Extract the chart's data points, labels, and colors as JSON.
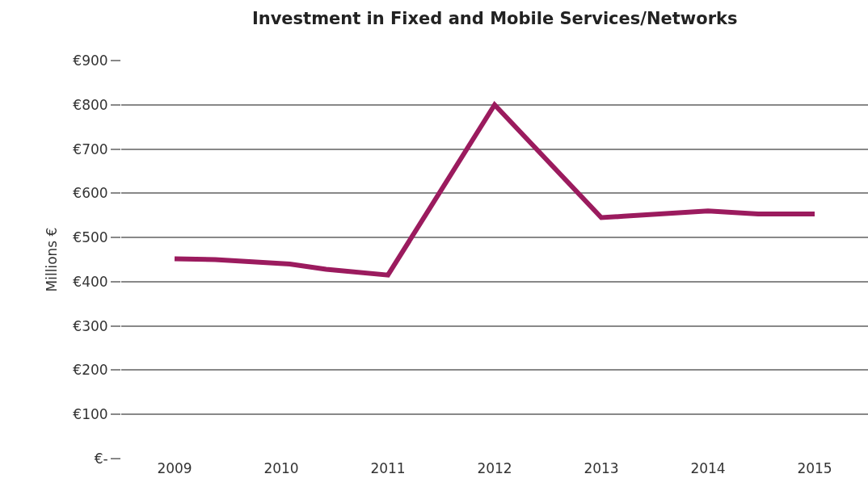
{
  "chart_data": {
    "type": "line",
    "title": "Investment in Fixed and Mobile Services/Networks",
    "ylabel": "Millions €",
    "x": [
      2009,
      2009.38,
      2010.08,
      2010.42,
      2011,
      2012,
      2013,
      2013.21,
      2014,
      2014.47,
      2015
    ],
    "series": [
      {
        "color": "#9b1b5e",
        "values": [
          452,
          450,
          440,
          428,
          415,
          800,
          545,
          548,
          560,
          553,
          553
        ]
      }
    ],
    "xlim": [
      2008.5,
      2015.5
    ],
    "xticks": [
      2009,
      2010,
      2011,
      2012,
      2013,
      2014,
      2015
    ],
    "ylim": [
      0,
      900
    ],
    "yticks": [
      {
        "value": 0,
        "label": "€-"
      },
      {
        "value": 100,
        "label": "€100"
      },
      {
        "value": 200,
        "label": "€200"
      },
      {
        "value": 300,
        "label": "€300"
      },
      {
        "value": 400,
        "label": "€400"
      },
      {
        "value": 500,
        "label": "€500"
      },
      {
        "value": 600,
        "label": "€600"
      },
      {
        "value": 700,
        "label": "€700"
      },
      {
        "value": 800,
        "label": "€800"
      },
      {
        "value": 900,
        "label": "€900"
      }
    ],
    "grid": "y",
    "marker": "none",
    "line_style": "solid"
  }
}
